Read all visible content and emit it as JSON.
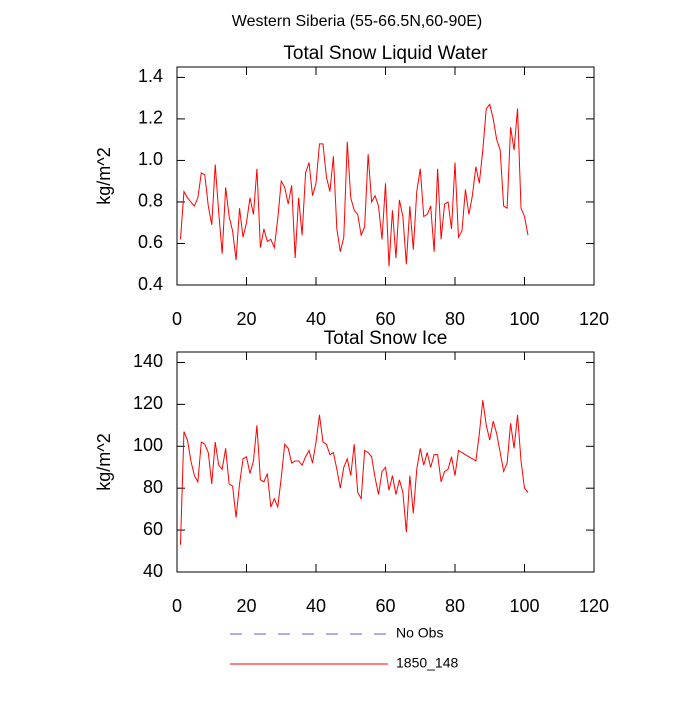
{
  "title": "Western Siberia (55-66.5N,60-90E)",
  "legend": [
    {
      "name": "No Obs",
      "color": "#6a5acd",
      "dash": true
    },
    {
      "name": "1850_148",
      "color": "#ff0000",
      "dash": false
    }
  ],
  "chart_data": [
    {
      "type": "line",
      "title": "Total Snow Liquid Water",
      "ylabel": "kg/m^2",
      "xlim": [
        0,
        120
      ],
      "xticks": [
        0,
        20,
        40,
        60,
        80,
        100,
        120
      ],
      "ylim": [
        0.4,
        1.45
      ],
      "yticks": [
        0.4,
        0.6,
        0.8,
        {
          "value": 1,
          "label": "1.0"
        },
        1.2,
        1.4
      ],
      "x": [
        1,
        2,
        3,
        4,
        5,
        6,
        7,
        8,
        9,
        10,
        11,
        12,
        13,
        14,
        15,
        16,
        17,
        18,
        19,
        20,
        21,
        22,
        23,
        24,
        25,
        26,
        27,
        28,
        29,
        30,
        31,
        32,
        33,
        34,
        35,
        36,
        37,
        38,
        39,
        40,
        41,
        42,
        43,
        44,
        45,
        46,
        47,
        48,
        49,
        50,
        51,
        52,
        53,
        54,
        55,
        56,
        57,
        58,
        59,
        60,
        61,
        62,
        63,
        64,
        65,
        66,
        67,
        68,
        69,
        70,
        71,
        72,
        73,
        74,
        75,
        76,
        77,
        78,
        79,
        80,
        81,
        82,
        83,
        84,
        85,
        86,
        87,
        88,
        89,
        90,
        91,
        92,
        93,
        94,
        95,
        96,
        97,
        98,
        99,
        100,
        101
      ],
      "series": [
        {
          "name": "1850_148",
          "color": "#ff0000",
          "values": [
            0.62,
            0.85,
            0.82,
            0.8,
            0.78,
            0.82,
            0.94,
            0.93,
            0.78,
            0.69,
            0.98,
            0.75,
            0.55,
            0.87,
            0.73,
            0.66,
            0.52,
            0.77,
            0.63,
            0.7,
            0.82,
            0.74,
            0.96,
            0.58,
            0.67,
            0.61,
            0.62,
            0.58,
            0.72,
            0.9,
            0.87,
            0.79,
            0.88,
            0.53,
            0.82,
            0.64,
            0.94,
            0.99,
            0.83,
            0.89,
            1.08,
            1.08,
            0.92,
            0.85,
            1.02,
            0.67,
            0.56,
            0.63,
            1.09,
            0.82,
            0.76,
            0.74,
            0.64,
            0.68,
            1.03,
            0.8,
            0.83,
            0.78,
            0.62,
            0.89,
            0.49,
            0.76,
            0.53,
            0.81,
            0.73,
            0.5,
            0.78,
            0.57,
            0.85,
            0.96,
            0.73,
            0.74,
            0.78,
            0.56,
            0.96,
            0.62,
            0.79,
            0.8,
            0.67,
            0.99,
            0.63,
            0.66,
            0.86,
            0.74,
            0.83,
            0.97,
            0.89,
            1.05,
            1.25,
            1.27,
            1.2,
            1.1,
            1.05,
            0.78,
            0.77,
            1.16,
            1.05,
            1.25,
            0.77,
            0.73,
            0.64
          ]
        }
      ]
    },
    {
      "type": "line",
      "title": "Total Snow Ice",
      "ylabel": "kg/m^2",
      "xlim": [
        0,
        120
      ],
      "xticks": [
        0,
        20,
        40,
        60,
        80,
        100,
        120
      ],
      "ylim": [
        40,
        145
      ],
      "yticks": [
        40,
        60,
        80,
        100,
        120,
        140
      ],
      "x": [
        1,
        2,
        3,
        4,
        5,
        6,
        7,
        8,
        9,
        10,
        11,
        12,
        13,
        14,
        15,
        16,
        17,
        18,
        19,
        20,
        21,
        22,
        23,
        24,
        25,
        26,
        27,
        28,
        29,
        30,
        31,
        32,
        33,
        34,
        35,
        36,
        37,
        38,
        39,
        40,
        41,
        42,
        43,
        44,
        45,
        46,
        47,
        48,
        49,
        50,
        51,
        52,
        53,
        54,
        55,
        56,
        57,
        58,
        59,
        60,
        61,
        62,
        63,
        64,
        65,
        66,
        67,
        68,
        69,
        70,
        71,
        72,
        73,
        74,
        75,
        76,
        77,
        78,
        79,
        80,
        81,
        82,
        83,
        84,
        85,
        86,
        87,
        88,
        89,
        90,
        91,
        92,
        93,
        94,
        95,
        96,
        97,
        98,
        99,
        100,
        101
      ],
      "series": [
        {
          "name": "1850_148",
          "color": "#ff0000",
          "values": [
            53,
            107,
            103,
            93,
            86,
            83,
            102,
            101,
            97,
            82,
            102,
            91,
            89,
            99,
            82,
            81,
            66,
            82,
            94,
            95,
            87,
            93,
            110,
            84,
            83,
            87,
            71,
            75,
            71,
            85,
            101,
            99,
            92,
            93,
            93,
            91,
            95,
            98,
            92,
            102,
            115,
            102,
            101,
            96,
            97,
            89,
            80,
            90,
            94,
            86,
            101,
            78,
            75,
            98,
            97,
            95,
            85,
            77,
            88,
            90,
            79,
            86,
            77,
            84,
            78,
            59,
            86,
            68,
            89,
            99,
            91,
            97,
            90,
            96,
            96,
            83,
            88,
            89,
            95,
            86,
            98,
            97,
            96,
            95,
            94,
            93,
            106,
            122,
            110,
            103,
            112,
            106,
            97,
            88,
            92,
            111,
            99,
            115,
            93,
            80,
            78
          ]
        }
      ]
    }
  ]
}
